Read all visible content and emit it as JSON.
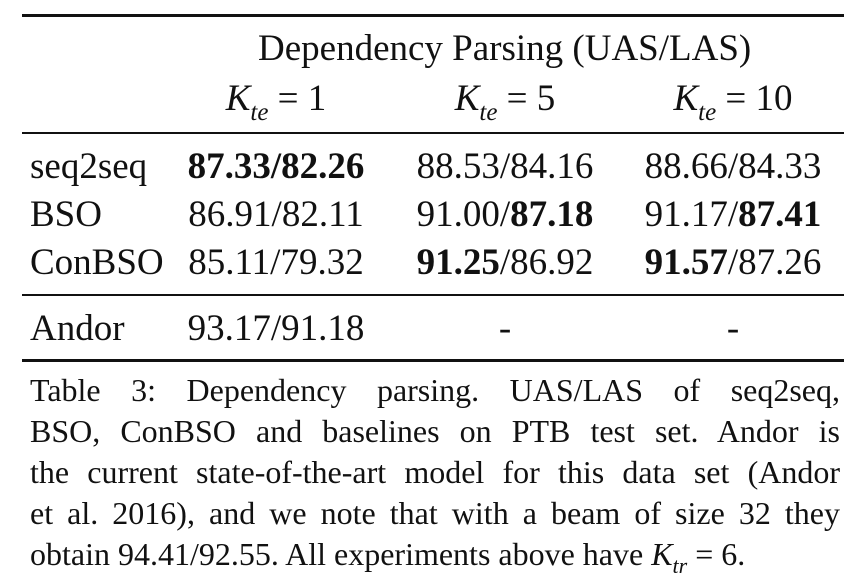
{
  "table": {
    "group_header": "Dependency Parsing (UAS/LAS)",
    "columns": [
      {
        "symbol": "K",
        "subscript": "te",
        "rest": " = 1"
      },
      {
        "symbol": "K",
        "subscript": "te",
        "rest": " = 5"
      },
      {
        "symbol": "K",
        "subscript": "te",
        "rest": " = 10"
      }
    ],
    "rows": [
      {
        "model": "seq2seq",
        "cells": [
          {
            "uas": "87.33",
            "las": "82.26",
            "uas_bold": true,
            "las_bold": true
          },
          {
            "uas": "88.53",
            "las": "84.16",
            "uas_bold": false,
            "las_bold": false
          },
          {
            "uas": "88.66",
            "las": "84.33",
            "uas_bold": false,
            "las_bold": false
          }
        ]
      },
      {
        "model": "BSO",
        "cells": [
          {
            "uas": "86.91",
            "las": "82.11",
            "uas_bold": false,
            "las_bold": false
          },
          {
            "uas": "91.00",
            "las": "87.18",
            "uas_bold": false,
            "las_bold": true
          },
          {
            "uas": "91.17",
            "las": "87.41",
            "uas_bold": false,
            "las_bold": true
          }
        ]
      },
      {
        "model": "ConBSO",
        "cells": [
          {
            "uas": "85.11",
            "las": "79.32",
            "uas_bold": false,
            "las_bold": false
          },
          {
            "uas": "91.25",
            "las": "86.92",
            "uas_bold": true,
            "las_bold": false
          },
          {
            "uas": "91.57",
            "las": "87.26",
            "uas_bold": true,
            "las_bold": false
          }
        ]
      }
    ],
    "baseline": {
      "model": "Andor",
      "cells": [
        "93.17/91.18",
        "-",
        "-"
      ]
    }
  },
  "caption": {
    "lines": [
      "Table 3: Dependency parsing. UAS/LAS of seq2seq,",
      "BSO, ConBSO and baselines on PTB test set. Andor is",
      "the current state-of-the-art model for this data set (Andor",
      "et al. 2016), and we note that with a beam of size 32 they"
    ],
    "last_prefix": "obtain 94.41/92.55. All experiments above have ",
    "last_symbol": "K",
    "last_subscript": "tr",
    "last_suffix": " = 6."
  }
}
